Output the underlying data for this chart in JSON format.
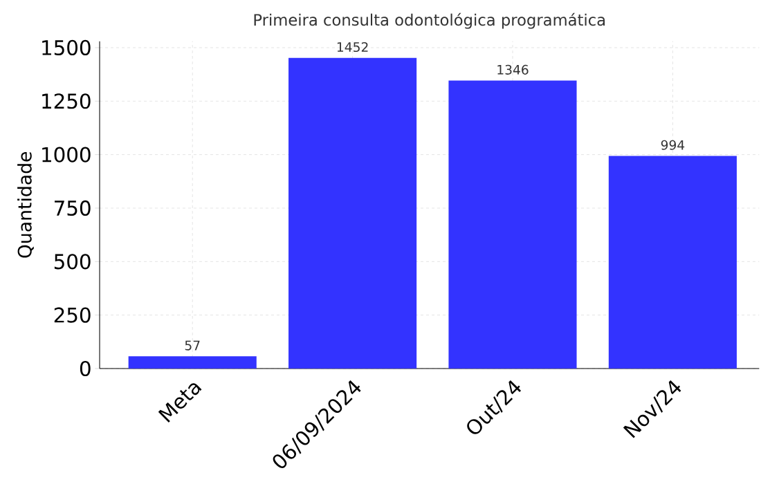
{
  "chart_data": {
    "type": "bar",
    "title": "Primeira consulta odontológica programática",
    "ylabel": "Quantidade",
    "categories": [
      "Meta",
      "06/09/2024",
      "Out/24",
      "Nov/24"
    ],
    "values": [
      57,
      1452,
      1346,
      994
    ],
    "color": "#3333ff",
    "ylim": [
      0,
      1530
    ],
    "yticks": [
      0,
      250,
      500,
      750,
      1000,
      1250,
      1500
    ],
    "grid": true,
    "data_labels": true
  }
}
